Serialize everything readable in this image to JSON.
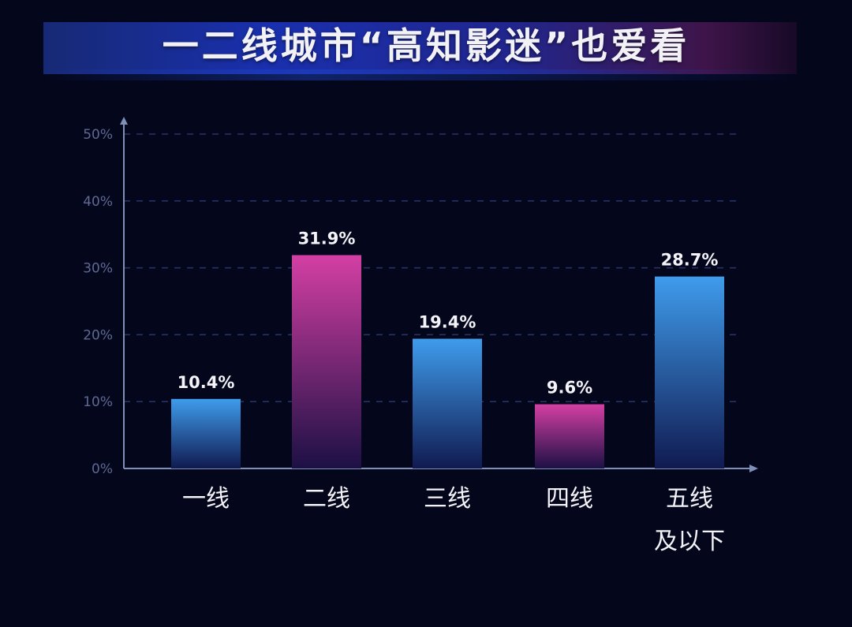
{
  "chart_data": {
    "type": "bar",
    "title": "一二线城市“高知影迷”也爱看",
    "xlabel": "",
    "ylabel": "",
    "categories": [
      [
        "一线"
      ],
      [
        "二线"
      ],
      [
        "三线"
      ],
      [
        "四线"
      ],
      [
        "五线",
        "及以下"
      ]
    ],
    "values": [
      10.4,
      31.9,
      19.4,
      9.6,
      28.7
    ],
    "value_labels": [
      "10.4%",
      "31.9%",
      "19.4%",
      "9.6%",
      "28.7%"
    ],
    "bar_colors": [
      "blue",
      "magenta",
      "blue",
      "magenta",
      "blue"
    ],
    "ylim": [
      0,
      50
    ],
    "yticks": [
      0,
      10,
      20,
      30,
      40,
      50
    ],
    "ytick_labels": [
      "0%",
      "10%",
      "20%",
      "30%",
      "40%",
      "50%"
    ],
    "grid": true
  },
  "palette": {
    "background": "#04061c",
    "blue_top": "#3f9cec",
    "blue_bottom": "#101a50",
    "magenta_top": "#d43fa4",
    "magenta_bottom": "#1c1044",
    "axis": "#7e8fb8",
    "grid": "#283666"
  }
}
